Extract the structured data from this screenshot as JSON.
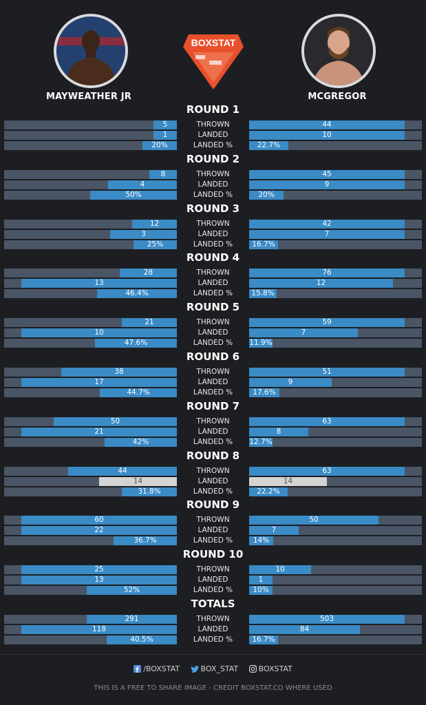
{
  "fighters": {
    "left": {
      "name": "MAYWEATHER JR"
    },
    "right": {
      "name": "MCGREGOR"
    }
  },
  "logo": {
    "text": "BOXSTAT",
    "color": "#e8502c"
  },
  "colors": {
    "bar_fill": "#3a8bc6",
    "bar_track": "#4a5566",
    "tie_fill": "#d4d4d4",
    "background": "#1d1e22"
  },
  "row_labels": {
    "thrown": "THROWN",
    "landed": "LANDED",
    "pct": "LANDED %"
  },
  "rounds": [
    {
      "title": "ROUND 1",
      "left": {
        "thrown": "5",
        "landed": "1",
        "pct": "20%"
      },
      "right": {
        "thrown": "44",
        "landed": "10",
        "pct": "22.7%"
      }
    },
    {
      "title": "ROUND 2",
      "left": {
        "thrown": "8",
        "landed": "4",
        "pct": "50%"
      },
      "right": {
        "thrown": "45",
        "landed": "9",
        "pct": "20%"
      }
    },
    {
      "title": "ROUND 3",
      "left": {
        "thrown": "12",
        "landed": "3",
        "pct": "25%"
      },
      "right": {
        "thrown": "42",
        "landed": "7",
        "pct": "16.7%"
      }
    },
    {
      "title": "ROUND 4",
      "left": {
        "thrown": "28",
        "landed": "13",
        "pct": "46.4%"
      },
      "right": {
        "thrown": "76",
        "landed": "12",
        "pct": "15.8%"
      }
    },
    {
      "title": "ROUND 5",
      "left": {
        "thrown": "21",
        "landed": "10",
        "pct": "47.6%"
      },
      "right": {
        "thrown": "59",
        "landed": "7",
        "pct": "11.9%"
      }
    },
    {
      "title": "ROUND 6",
      "left": {
        "thrown": "38",
        "landed": "17",
        "pct": "44.7%"
      },
      "right": {
        "thrown": "51",
        "landed": "9",
        "pct": "17.6%"
      }
    },
    {
      "title": "ROUND 7",
      "left": {
        "thrown": "50",
        "landed": "21",
        "pct": "42%"
      },
      "right": {
        "thrown": "63",
        "landed": "8",
        "pct": "12.7%"
      }
    },
    {
      "title": "ROUND 8",
      "left": {
        "thrown": "44",
        "landed": "14",
        "pct": "31.8%"
      },
      "right": {
        "thrown": "63",
        "landed": "14",
        "pct": "22.2%"
      }
    },
    {
      "title": "ROUND 9",
      "left": {
        "thrown": "60",
        "landed": "22",
        "pct": "36.7%"
      },
      "right": {
        "thrown": "50",
        "landed": "7",
        "pct": "14%"
      }
    },
    {
      "title": "ROUND 10",
      "left": {
        "thrown": "25",
        "landed": "13",
        "pct": "52%"
      },
      "right": {
        "thrown": "10",
        "landed": "1",
        "pct": "10%"
      }
    },
    {
      "title": "TOTALS",
      "left": {
        "thrown": "291",
        "landed": "118",
        "pct": "40.5%"
      },
      "right": {
        "thrown": "503",
        "landed": "84",
        "pct": "16.7%"
      }
    }
  ],
  "footer": {
    "facebook": "/BOXSTAT",
    "twitter": "BOX_STAT",
    "instagram": "BOXSTAT",
    "credit": "THIS IS A FREE TO SHARE IMAGE - CREDIT BOXSTAT.CO WHERE USED"
  }
}
